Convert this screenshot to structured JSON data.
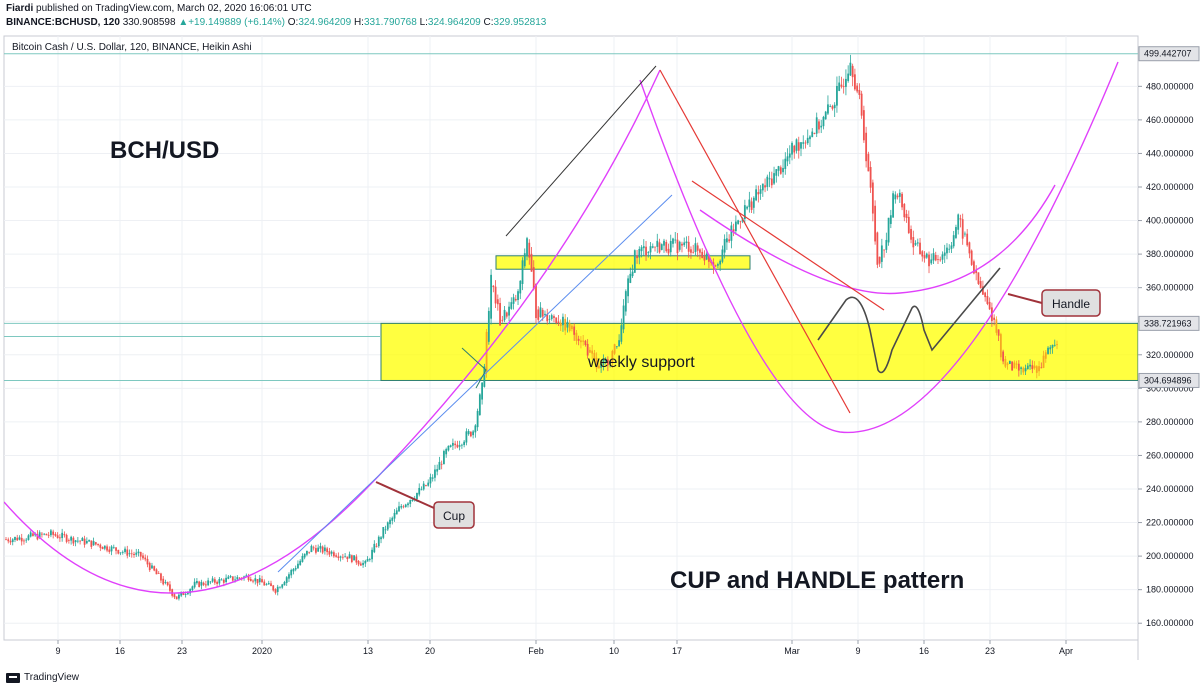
{
  "header": {
    "publisher": "Fiardi",
    "published_text": "published on TradingView.com, March 02, 2020 16:06:01 UTC",
    "symbol": "BINANCE:BCHUSD, 120",
    "last": "330.908598",
    "change": "+19.149889 (+6.14%)",
    "o_label": "O:",
    "o_value": "324.964209",
    "h_label": "H:",
    "h_value": "331.790768",
    "l_label": "L:",
    "l_value": "324.964209",
    "c_label": "C:",
    "c_value": "329.952813"
  },
  "chart_data": {
    "type": "candlestick",
    "title": "Bitcoin Cash / U.S. Dollar, 120, BINANCE, Heikin Ashi",
    "x_tick_labels": [
      "9",
      "16",
      "23",
      "2020",
      "13",
      "20",
      "Feb",
      "10",
      "17",
      "Mar",
      "9",
      "16",
      "23",
      "Apr"
    ],
    "y_tick_labels": [
      "480.000000",
      "460.000000",
      "440.000000",
      "420.000000",
      "400.000000",
      "380.000000",
      "360.000000",
      "340.000000",
      "320.000000",
      "300.000000",
      "280.000000",
      "260.000000",
      "240.000000",
      "220.000000",
      "200.000000",
      "180.000000",
      "160.000000"
    ],
    "y_range": [
      150,
      510
    ],
    "price_highlights": [
      {
        "label": "499.442707",
        "value": 499.44
      },
      {
        "label": "338.721963",
        "value": 338.72
      },
      {
        "label": "304.694896",
        "value": 304.69
      }
    ],
    "price_path": [
      [
        0,
        210
      ],
      [
        5,
        213
      ],
      [
        10,
        207
      ],
      [
        15,
        200
      ],
      [
        19,
        175
      ],
      [
        21,
        183
      ],
      [
        27,
        188
      ],
      [
        30,
        180
      ],
      [
        34,
        205
      ],
      [
        38,
        200
      ],
      [
        40,
        195
      ],
      [
        42,
        215
      ],
      [
        44,
        230
      ],
      [
        47,
        243
      ],
      [
        49,
        262
      ],
      [
        52,
        275
      ],
      [
        53,
        300
      ],
      [
        54,
        365
      ],
      [
        55,
        340
      ],
      [
        57,
        355
      ],
      [
        58,
        390
      ],
      [
        59,
        345
      ],
      [
        61,
        343
      ],
      [
        64,
        330
      ],
      [
        66,
        310
      ],
      [
        68,
        325
      ],
      [
        69,
        355
      ],
      [
        70,
        380
      ],
      [
        72,
        385
      ],
      [
        76,
        385
      ],
      [
        79,
        375
      ],
      [
        82,
        405
      ],
      [
        86,
        430
      ],
      [
        88,
        445
      ],
      [
        91,
        460
      ],
      [
        93,
        480
      ],
      [
        94,
        498
      ],
      [
        95,
        470
      ],
      [
        96,
        430
      ],
      [
        97,
        375
      ],
      [
        98,
        390
      ],
      [
        99,
        420
      ],
      [
        100,
        405
      ],
      [
        101,
        385
      ],
      [
        103,
        375
      ],
      [
        105,
        385
      ],
      [
        106,
        400
      ],
      [
        107,
        385
      ],
      [
        108,
        365
      ],
      [
        110,
        340
      ],
      [
        111,
        315
      ],
      [
        113,
        310
      ],
      [
        115,
        312
      ],
      [
        116,
        322
      ],
      [
        117,
        330
      ]
    ],
    "annotations": {
      "asset_label": "BCH/USD",
      "pattern_label": "CUP and HANDLE pattern",
      "support_label": "weekly support",
      "cup_label": "Cup",
      "handle_label": "Handle"
    },
    "support_zone": [
      304.69,
      338.72
    ],
    "upper_zone": [
      371,
      379
    ]
  },
  "footer": {
    "brand": "TradingView"
  },
  "colors": {
    "up": "#26a69a",
    "down": "#ef5350",
    "doji": "#f5a623",
    "support": "#ffff00",
    "trend_pink": "#e040fb",
    "trend_red": "#e53935",
    "trend_blue": "#5b8def",
    "trend_dark": "#333333"
  }
}
